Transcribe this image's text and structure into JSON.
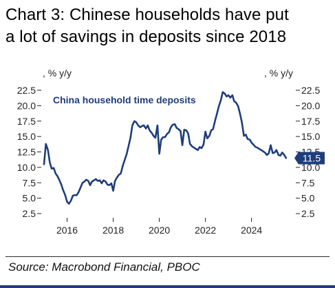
{
  "title_line1": "Chart 3: Chinese households  have put",
  "title_line2": "a lot of savings in deposits since 2018",
  "source": "Source: Macrobond Financial, PBOC",
  "colors": {
    "series": "#1e3d7b",
    "axis_text": "#222222",
    "callout_bg": "#1e3d7b",
    "callout_text": "#ffffff"
  },
  "chart_data": {
    "type": "line",
    "ylabel_left": ", % y/y",
    "ylabel_right": ", % y/y",
    "ylim": [
      2.5,
      22.5
    ],
    "yticks": [
      "2.5",
      "5.0",
      "7.5",
      "10.0",
      "12.5",
      "15.0",
      "17.5",
      "20.0",
      "22.5"
    ],
    "yticks_right": [
      "2.5",
      "5.0",
      "7.5",
      "10.0",
      "12.5",
      "15.0",
      "17.5",
      "20.0",
      "22.5"
    ],
    "xlim": [
      2015.0,
      2025.8
    ],
    "xticks": [
      "2016",
      "2018",
      "2020",
      "2022",
      "2024"
    ],
    "grid": false,
    "last_value_label": "11.5",
    "series": [
      {
        "name": "China household time deposits",
        "x": [
          2015.0,
          2015.08,
          2015.17,
          2015.25,
          2015.33,
          2015.42,
          2015.5,
          2015.58,
          2015.67,
          2015.75,
          2015.83,
          2015.92,
          2016.0,
          2016.08,
          2016.17,
          2016.25,
          2016.33,
          2016.42,
          2016.5,
          2016.58,
          2016.67,
          2016.75,
          2016.83,
          2016.92,
          2017.0,
          2017.08,
          2017.17,
          2017.25,
          2017.33,
          2017.42,
          2017.5,
          2017.58,
          2017.67,
          2017.75,
          2017.83,
          2017.92,
          2018.0,
          2018.08,
          2018.17,
          2018.25,
          2018.33,
          2018.42,
          2018.5,
          2018.58,
          2018.67,
          2018.75,
          2018.83,
          2018.92,
          2019.0,
          2019.08,
          2019.17,
          2019.25,
          2019.33,
          2019.42,
          2019.5,
          2019.58,
          2019.67,
          2019.75,
          2019.83,
          2019.92,
          2020.0,
          2020.08,
          2020.17,
          2020.25,
          2020.33,
          2020.42,
          2020.5,
          2020.58,
          2020.67,
          2020.75,
          2020.83,
          2020.92,
          2021.0,
          2021.08,
          2021.17,
          2021.25,
          2021.33,
          2021.42,
          2021.5,
          2021.58,
          2021.67,
          2021.75,
          2021.83,
          2021.92,
          2022.0,
          2022.08,
          2022.17,
          2022.25,
          2022.33,
          2022.42,
          2022.5,
          2022.58,
          2022.67,
          2022.75,
          2022.83,
          2022.92,
          2023.0,
          2023.08,
          2023.17,
          2023.25,
          2023.33,
          2023.42,
          2023.5,
          2023.58,
          2023.67,
          2023.75,
          2023.83,
          2023.92,
          2024.0,
          2024.08,
          2024.17,
          2024.25,
          2024.33,
          2024.42,
          2024.5,
          2024.58,
          2024.67,
          2024.75,
          2024.83,
          2024.92,
          2025.0,
          2025.08,
          2025.17,
          2025.25,
          2025.33,
          2025.42,
          2025.5
        ],
        "values": [
          10.5,
          13.8,
          12.8,
          10.8,
          9.8,
          9.9,
          9.0,
          8.6,
          7.9,
          7.2,
          6.3,
          5.5,
          4.4,
          4.1,
          4.6,
          5.4,
          5.5,
          5.5,
          6.0,
          6.7,
          7.5,
          7.7,
          8.0,
          7.8,
          7.1,
          7.7,
          7.9,
          8.1,
          7.8,
          7.9,
          7.4,
          7.9,
          7.7,
          7.2,
          7.1,
          7.4,
          6.2,
          7.8,
          8.4,
          8.8,
          9.0,
          10.3,
          11.2,
          12.1,
          13.5,
          14.8,
          16.8,
          17.5,
          17.3,
          16.8,
          16.5,
          16.7,
          16.8,
          16.3,
          16.8,
          16.0,
          15.6,
          15.1,
          14.8,
          16.8,
          12.2,
          14.5,
          14.9,
          14.9,
          15.4,
          15.7,
          16.5,
          16.9,
          17.0,
          16.4,
          16.2,
          15.9,
          13.6,
          16.1,
          16.0,
          15.5,
          13.8,
          13.4,
          13.2,
          13.0,
          12.8,
          13.3,
          13.1,
          13.7,
          15.8,
          14.7,
          15.1,
          16.0,
          16.2,
          17.6,
          18.7,
          19.9,
          20.9,
          22.2,
          22.0,
          21.5,
          21.7,
          21.3,
          21.7,
          20.7,
          20.5,
          19.9,
          18.7,
          17.3,
          15.1,
          15.3,
          14.6,
          14.5,
          14.0,
          13.7,
          13.3,
          13.2,
          13.0,
          12.8,
          12.6,
          12.4,
          12.0,
          12.3,
          13.6,
          12.3,
          12.4,
          12.8,
          12.0,
          11.9,
          12.4,
          12.0,
          11.5
        ]
      }
    ]
  }
}
